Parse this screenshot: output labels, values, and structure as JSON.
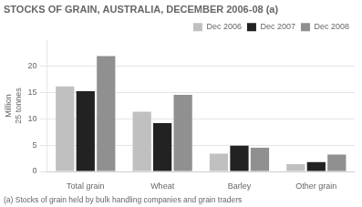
{
  "chart_data": {
    "type": "bar",
    "title": "STOCKS OF GRAIN, AUSTRALIA, DECEMBER 2006-08 (a)",
    "annotations": [
      "(a) Stocks of grain held by bulk handling companies and grain traders"
    ],
    "ylabel": [
      "Million",
      "25 tonnes"
    ],
    "categories": [
      "Total grain",
      "Wheat",
      "Barley",
      "Other grain"
    ],
    "series": [
      {
        "name": "Dec 2006",
        "color": "#c0c0c0",
        "values": [
          16.2,
          11.4,
          3.4,
          1.4
        ]
      },
      {
        "name": "Dec 2007",
        "color": "#222222",
        "values": [
          15.3,
          9.2,
          4.9,
          1.8
        ]
      },
      {
        "name": "Dec 2008",
        "color": "#909090",
        "values": [
          22.0,
          14.6,
          4.5,
          3.2
        ]
      }
    ],
    "ylim": [
      0,
      25
    ],
    "yticks": [
      0,
      5,
      10,
      15,
      20
    ],
    "grid": true,
    "legend": "top-right"
  }
}
